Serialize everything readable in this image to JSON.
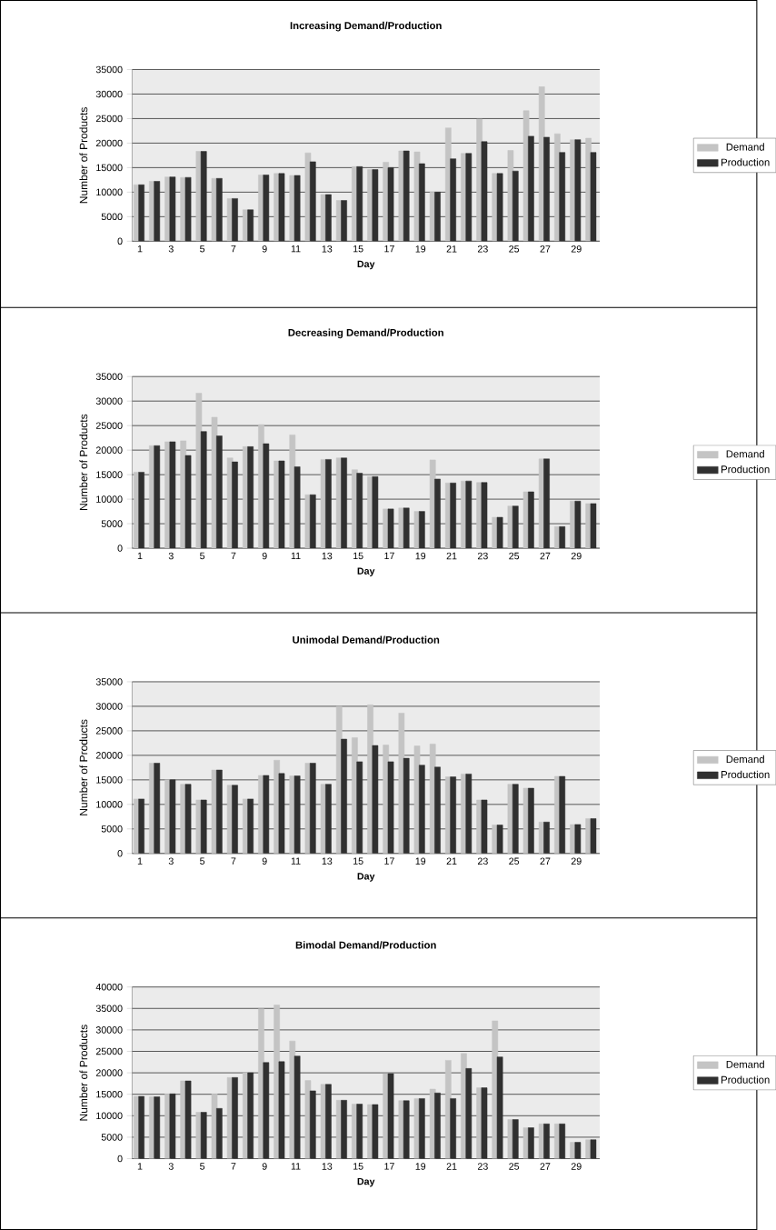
{
  "chart_data": [
    {
      "type": "bar",
      "title": "Increasing Demand/Production",
      "xlabel": "Day",
      "ylabel": "Number of Products",
      "categories": [
        "1",
        null,
        "3",
        null,
        "5",
        null,
        "7",
        null,
        "9",
        null,
        "11",
        null,
        "13",
        null,
        "15",
        null,
        "17",
        null,
        "19",
        null,
        "21",
        null,
        "23",
        null,
        "25",
        null,
        "27",
        null,
        "29",
        null
      ],
      "series": [
        {
          "name": "Demand",
          "color": "#c4c4c4",
          "values": [
            11500,
            12200,
            13100,
            13000,
            18300,
            12800,
            8700,
            6400,
            13500,
            13800,
            13400,
            18000,
            9500,
            8300,
            15200,
            14600,
            16100,
            18400,
            18200,
            10000,
            23100,
            17900,
            24900,
            13800,
            18500,
            26600,
            31500,
            21900,
            20700,
            21000
          ]
        },
        {
          "name": "Production",
          "color": "#303030",
          "values": [
            11500,
            12200,
            13100,
            13000,
            18300,
            12800,
            8700,
            6400,
            13500,
            13800,
            13400,
            16200,
            9500,
            8300,
            15200,
            14600,
            15000,
            18400,
            15800,
            10000,
            16800,
            17900,
            20300,
            13800,
            14300,
            21400,
            21200,
            18100,
            20700,
            18100
          ]
        }
      ],
      "ylim": [
        0,
        35000
      ],
      "yticks": [
        0,
        5000,
        10000,
        15000,
        20000,
        25000,
        30000,
        35000
      ],
      "grid": "y",
      "legend": "right"
    },
    {
      "type": "bar",
      "title": "Decreasing Demand/Production",
      "xlabel": "Day",
      "ylabel": "Number of Products",
      "categories": [
        "1",
        null,
        "3",
        null,
        "5",
        null,
        "7",
        null,
        "9",
        null,
        "11",
        null,
        "13",
        null,
        "15",
        null,
        "17",
        null,
        "19",
        null,
        "21",
        null,
        "23",
        null,
        "25",
        null,
        "27",
        null,
        "29",
        null
      ],
      "series": [
        {
          "name": "Demand",
          "color": "#c4c4c4",
          "values": [
            15500,
            20900,
            21700,
            21900,
            31600,
            26700,
            18400,
            20700,
            25200,
            17800,
            23100,
            10900,
            18100,
            18400,
            16000,
            14600,
            8000,
            8200,
            7500,
            18000,
            13300,
            13700,
            13400,
            6300,
            8600,
            11500,
            18200,
            4400,
            9600,
            9100
          ]
        },
        {
          "name": "Production",
          "color": "#303030",
          "values": [
            15500,
            20900,
            21700,
            18900,
            23800,
            22900,
            17600,
            20700,
            21300,
            17800,
            16600,
            10900,
            18100,
            18400,
            15300,
            14600,
            8000,
            8200,
            7500,
            14100,
            13300,
            13700,
            13400,
            6300,
            8600,
            11500,
            18200,
            4400,
            9600,
            9100
          ]
        }
      ],
      "ylim": [
        0,
        35000
      ],
      "yticks": [
        0,
        5000,
        10000,
        15000,
        20000,
        25000,
        30000,
        35000
      ],
      "grid": "y",
      "legend": "right"
    },
    {
      "type": "bar",
      "title": "Unimodal Demand/Production",
      "xlabel": "Day",
      "ylabel": "Number of Products",
      "categories": [
        "1",
        null,
        "3",
        null,
        "5",
        null,
        "7",
        null,
        "9",
        null,
        "11",
        null,
        "13",
        null,
        "15",
        null,
        "17",
        null,
        "19",
        null,
        "21",
        null,
        "23",
        null,
        "25",
        null,
        "27",
        null,
        "29",
        null
      ],
      "series": [
        {
          "name": "Demand",
          "color": "#c4c4c4",
          "values": [
            11100,
            18400,
            15000,
            14100,
            10900,
            17000,
            13900,
            11100,
            15900,
            19000,
            15800,
            18400,
            14100,
            30000,
            23600,
            30300,
            22100,
            28600,
            21900,
            22300,
            15600,
            16200,
            10900,
            5800,
            14100,
            13300,
            6400,
            15700,
            5900,
            7100
          ]
        },
        {
          "name": "Production",
          "color": "#303030",
          "values": [
            11100,
            18400,
            15000,
            14100,
            10900,
            17000,
            13900,
            11100,
            15900,
            16300,
            15800,
            18400,
            14100,
            23300,
            18700,
            22000,
            18700,
            19400,
            18000,
            17600,
            15600,
            16200,
            10900,
            5800,
            14100,
            13300,
            6400,
            15700,
            5900,
            7100
          ]
        }
      ],
      "ylim": [
        0,
        35000
      ],
      "yticks": [
        0,
        5000,
        10000,
        15000,
        20000,
        25000,
        30000,
        35000
      ],
      "grid": "y",
      "legend": "right"
    },
    {
      "type": "bar",
      "title": "Bimodal Demand/Production",
      "xlabel": "Day",
      "ylabel": "Number of Products",
      "categories": [
        "1",
        null,
        "3",
        null,
        "5",
        null,
        "7",
        null,
        "9",
        null,
        "11",
        null,
        "13",
        null,
        "15",
        null,
        "17",
        null,
        "19",
        null,
        "21",
        null,
        "23",
        null,
        "25",
        null,
        "27",
        null,
        "29",
        null
      ],
      "series": [
        {
          "name": "Demand",
          "color": "#c4c4c4",
          "values": [
            14500,
            14400,
            15100,
            18100,
            10800,
            15100,
            18900,
            20000,
            34900,
            35800,
            27400,
            18200,
            17300,
            13600,
            12700,
            12600,
            19800,
            13500,
            14000,
            16200,
            22900,
            24500,
            16500,
            32100,
            9100,
            7200,
            8100,
            8100,
            3800,
            4400
          ]
        },
        {
          "name": "Production",
          "color": "#303030",
          "values": [
            14500,
            14400,
            15100,
            18100,
            10800,
            11700,
            18900,
            20000,
            22400,
            22600,
            23900,
            15800,
            17300,
            13600,
            12700,
            12600,
            19800,
            13500,
            14000,
            15300,
            14000,
            21000,
            16500,
            23700,
            9100,
            7200,
            8100,
            8100,
            3800,
            4400
          ]
        }
      ],
      "ylim": [
        0,
        40000
      ],
      "yticks": [
        0,
        5000,
        10000,
        15000,
        20000,
        25000,
        30000,
        35000,
        40000
      ],
      "grid": "y",
      "legend": "right"
    }
  ]
}
